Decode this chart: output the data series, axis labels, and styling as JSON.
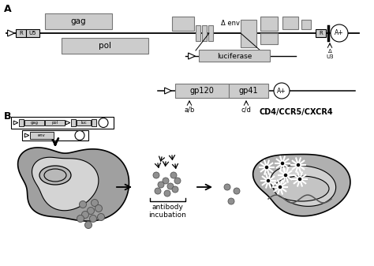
{
  "bg_color": "#ffffff",
  "box_color": "#cccccc",
  "box_color2": "#b8b8b8",
  "title_A": "A",
  "title_B": "B",
  "label_gag": "gag",
  "label_pol": "pol",
  "label_env": "Δ env",
  "label_luc": "luciferase",
  "label_R": "R",
  "label_U5": "U5",
  "label_Aplus": "A+",
  "label_gp120": "gp120",
  "label_gp41": "gp41",
  "label_ab": "a/b",
  "label_cd": "c/d",
  "label_antibody": "antibody\nincubation",
  "label_CD4": "CD4/CCR5/CXCR4"
}
